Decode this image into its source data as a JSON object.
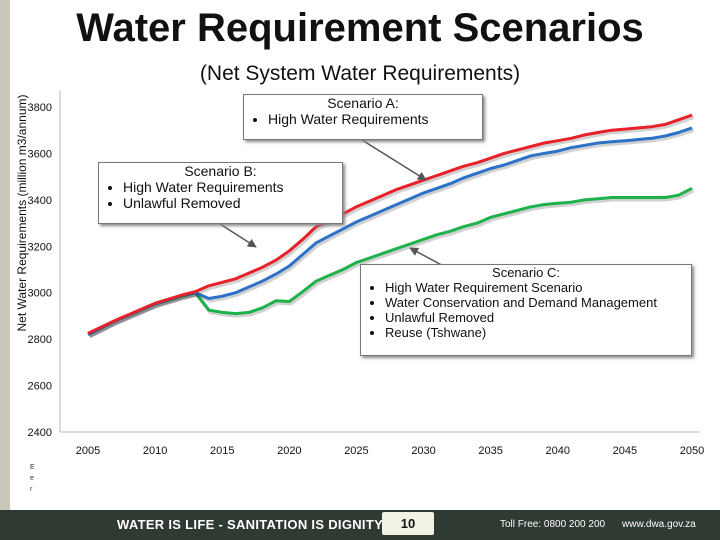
{
  "title": "Water Requirement Scenarios",
  "subtitle": "(Net System Water Requirements)",
  "callouts": {
    "a": {
      "title": "Scenario A:",
      "bullets": [
        "High Water  Requirements"
      ]
    },
    "b": {
      "title": "Scenario B:",
      "bullets": [
        "High Water  Requirements",
        "Unlawful Removed"
      ]
    },
    "c": {
      "title": "Scenario C:",
      "bullets": [
        "High Water Requirement Scenario",
        "Water Conservation and Demand Management",
        "Unlawful Removed",
        "Reuse (Tshwane)"
      ]
    }
  },
  "footer": {
    "slogan": "WATER IS LIFE - SANITATION IS DIGNITY",
    "page": "10",
    "tollfree": "Toll Free: 0800 200 200",
    "website": "www.dwa.gov.za"
  },
  "side_mark": "E\ne\nr",
  "chart_data": {
    "type": "line",
    "title": "Water Requirement Scenarios",
    "subtitle": "(Net System Water Requirements)",
    "xlabel": "",
    "ylabel": "Net Water Requirements (million m3/annum)",
    "xlim": [
      2005,
      2050
    ],
    "ylim": [
      2400,
      3800
    ],
    "xticks": [
      2005,
      2010,
      2015,
      2020,
      2025,
      2030,
      2035,
      2040,
      2045,
      2050
    ],
    "yticks": [
      2400,
      2600,
      2800,
      3000,
      3200,
      3400,
      3600,
      3800
    ],
    "grid": false,
    "legend": "none",
    "series": [
      {
        "color": "#e8202a",
        "x": [
          2005,
          2007,
          2010,
          2012,
          2013,
          2014,
          2015,
          2016,
          2017,
          2018,
          2019,
          2020,
          2021,
          2022,
          2023,
          2024,
          2025,
          2026,
          2027,
          2028,
          2029,
          2030,
          2031,
          2032,
          2033,
          2034,
          2035,
          2036,
          2037,
          2038,
          2039,
          2040,
          2041,
          2042,
          2043,
          2044,
          2045,
          2046,
          2047,
          2048,
          2049,
          2050
        ],
        "y": [
          2825,
          2880,
          2955,
          2990,
          3005,
          3030,
          3045,
          3060,
          3085,
          3110,
          3140,
          3180,
          3230,
          3285,
          3310,
          3340,
          3370,
          3395,
          3420,
          3445,
          3465,
          3485,
          3505,
          3525,
          3545,
          3560,
          3580,
          3600,
          3615,
          3630,
          3645,
          3655,
          3665,
          3680,
          3690,
          3700,
          3705,
          3710,
          3715,
          3725,
          3745,
          3765
        ]
      },
      {
        "color": "#2b72c8",
        "x": [
          2005,
          2007,
          2010,
          2012,
          2013,
          2014,
          2015,
          2016,
          2017,
          2018,
          2019,
          2020,
          2021,
          2022,
          2023,
          2024,
          2025,
          2026,
          2027,
          2028,
          2029,
          2030,
          2031,
          2032,
          2033,
          2034,
          2035,
          2036,
          2037,
          2038,
          2039,
          2040,
          2041,
          2042,
          2043,
          2044,
          2045,
          2046,
          2047,
          2048,
          2049,
          2050
        ],
        "y": [
          2820,
          2878,
          2952,
          2988,
          3000,
          2975,
          2985,
          3000,
          3025,
          3050,
          3080,
          3115,
          3165,
          3215,
          3245,
          3275,
          3305,
          3330,
          3355,
          3380,
          3405,
          3430,
          3450,
          3470,
          3495,
          3515,
          3535,
          3550,
          3570,
          3590,
          3600,
          3610,
          3625,
          3635,
          3645,
          3650,
          3655,
          3660,
          3665,
          3675,
          3690,
          3710
        ]
      },
      {
        "color": "#1eb24a",
        "x": [
          2005,
          2007,
          2010,
          2012,
          2013,
          2014,
          2015,
          2016,
          2017,
          2018,
          2019,
          2020,
          2021,
          2022,
          2023,
          2024,
          2025,
          2026,
          2027,
          2028,
          2029,
          2030,
          2031,
          2032,
          2033,
          2034,
          2035,
          2036,
          2037,
          2038,
          2039,
          2040,
          2041,
          2042,
          2043,
          2044,
          2045,
          2046,
          2047,
          2048,
          2049,
          2050
        ],
        "y": [
          2820,
          2878,
          2952,
          2985,
          3000,
          2925,
          2915,
          2910,
          2915,
          2935,
          2965,
          2962,
          3005,
          3050,
          3075,
          3100,
          3130,
          3150,
          3170,
          3190,
          3210,
          3230,
          3250,
          3265,
          3285,
          3300,
          3325,
          3340,
          3355,
          3370,
          3380,
          3385,
          3390,
          3400,
          3405,
          3410,
          3410,
          3410,
          3410,
          3410,
          3420,
          3450
        ]
      }
    ]
  }
}
